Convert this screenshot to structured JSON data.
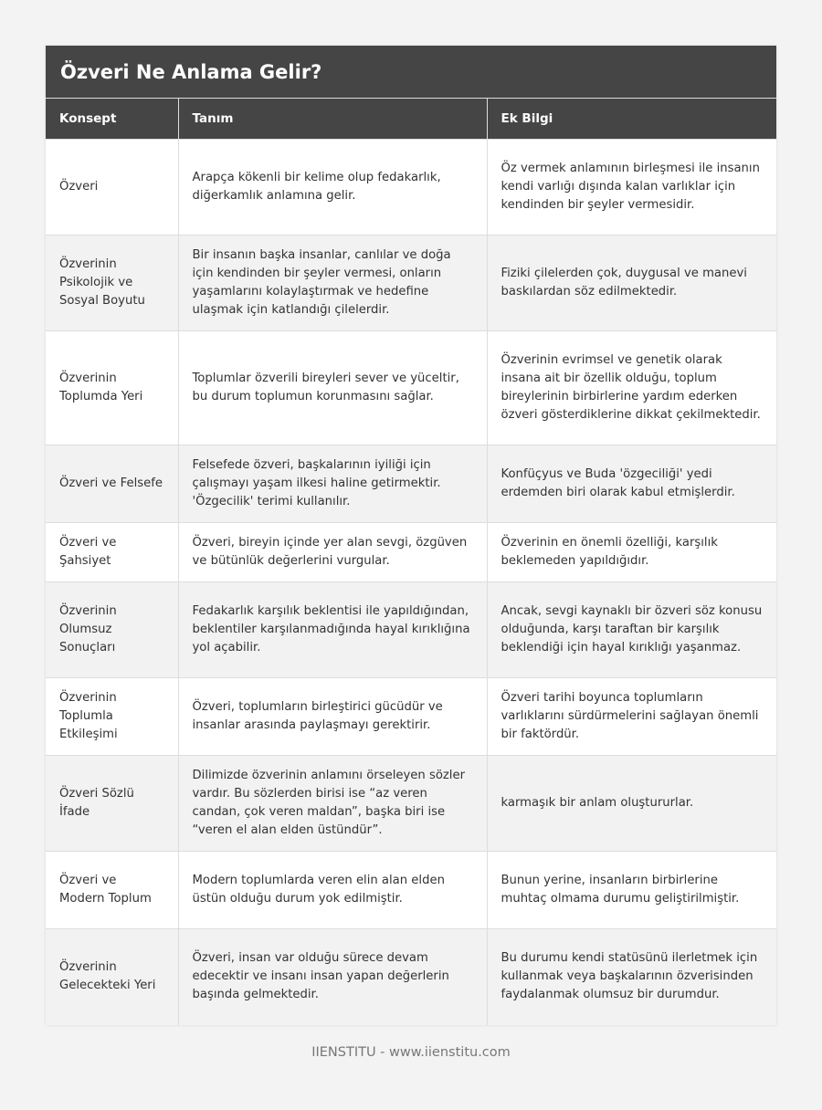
{
  "title": "Özveri Ne Anlama Gelir?",
  "columns": [
    "Konsept",
    "Tanım",
    "Ek Bilgi"
  ],
  "rows": [
    [
      "Özveri",
      "Arapça kökenli bir kelime olup fedakarlık, diğerkamlık anlamına gelir.",
      "Öz vermek anlamının birleşmesi ile insanın kendi varlığı dışında kalan varlıklar için kendinden bir şeyler vermesidir."
    ],
    [
      "Özverinin Psikolojik ve Sosyal Boyutu",
      "Bir insanın başka insanlar, canlılar ve doğa için kendinden bir şeyler vermesi, onların yaşamlarını kolaylaştırmak ve hedefine ulaşmak için katlandığı çilelerdir.",
      "Fiziki çilelerden çok, duygusal ve manevi baskılardan söz edilmektedir."
    ],
    [
      "Özverinin Toplumda Yeri",
      "Toplumlar özverili bireyleri sever ve yüceltir, bu durum toplumun korunmasını sağlar.",
      "Özverinin evrimsel ve genetik olarak insana ait bir özellik olduğu, toplum bireylerinin birbirlerine yardım ederken özveri gösterdiklerine dikkat çekilmektedir."
    ],
    [
      "Özveri ve Felsefe",
      "Felsefede özveri, başkalarının iyiliği için çalışmayı yaşam ilkesi haline getirmektir. 'Özgecilik' terimi kullanılır.",
      "Konfüçyus ve Buda 'özgeciliği' yedi erdemden biri olarak kabul etmişlerdir."
    ],
    [
      "Özveri ve Şahsiyet",
      "Özveri, bireyin içinde yer alan sevgi, özgüven ve bütünlük değerlerini vurgular.",
      "Özverinin en önemli özelliği, karşılık beklemeden yapıldığıdır."
    ],
    [
      "Özverinin Olumsuz Sonuçları",
      "Fedakarlık karşılık beklentisi ile yapıldığından, beklentiler karşılanmadığında hayal kırıklığına yol açabilir.",
      "Ancak, sevgi kaynaklı bir özveri söz konusu olduğunda, karşı taraftan bir karşılık beklendiği için hayal kırıklığı yaşanmaz."
    ],
    [
      "Özverinin Toplumla Etkileşimi",
      "Özveri, toplumların birleştirici gücüdür ve insanlar arasında paylaşmayı gerektirir.",
      "Özveri tarihi boyunca toplumların varlıklarını sürdürmelerini sağlayan önemli bir faktördür."
    ],
    [
      "Özveri Sözlü İfade",
      "Dilimizde özverinin anlamını örseleyen sözler vardır. Bu sözlerden birisi ise “az veren candan, çok veren maldan”, başka biri ise “veren el alan elden üstündür”.",
      "karmaşık bir anlam oluştururlar."
    ],
    [
      "Özveri ve Modern Toplum",
      "Modern toplumlarda veren elin alan elden üstün olduğu durum yok edilmiştir.",
      "Bunun yerine, insanların birbirlerine muhtaç olmama durumu geliştirilmiştir."
    ],
    [
      "Özverinin Gelecekteki Yeri",
      "Özveri, insan var olduğu sürece devam edecektir ve insanı insan yapan değerlerin başında gelmektedir.",
      "Bu durumu kendi statüsünü ilerletmek için kullanmak veya başkalarının özverisinden faydalanmak olumsuz bir durumdur."
    ]
  ],
  "footer": "IIENSTITU - www.iienstitu.com"
}
